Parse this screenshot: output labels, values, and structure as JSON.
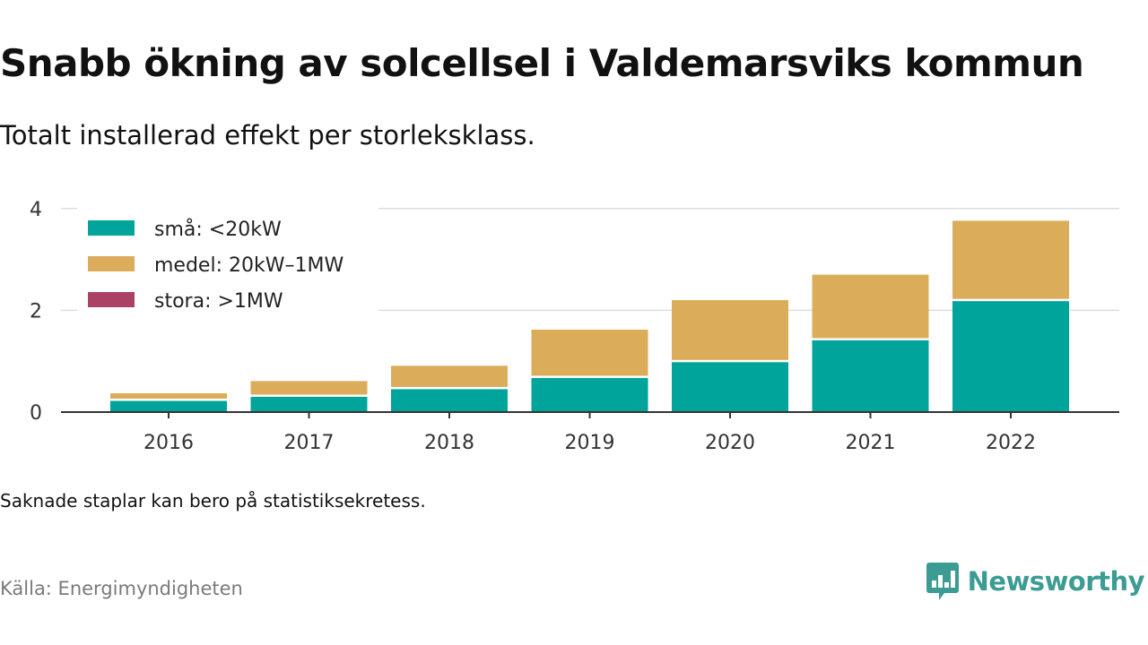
{
  "header": {
    "title": "Snabb ökning av solcellsel i Valdemarsviks kommun",
    "subtitle": "Totalt installerad effekt per storleksklass."
  },
  "footer": {
    "note": "Saknade staplar kan bero på statistiksekretess.",
    "source": "Källa: Energimyndigheten",
    "brand": "Newsworthy"
  },
  "colors": {
    "small": "#00a49a",
    "medium": "#dbad5a",
    "large": "#ab4266",
    "brand": "#3c9c94"
  },
  "chart_data": {
    "type": "bar",
    "stacked": true,
    "categories": [
      "2016",
      "2017",
      "2018",
      "2019",
      "2020",
      "2021",
      "2022"
    ],
    "series": [
      {
        "name": "små: <20kW",
        "color": "#00a49a",
        "values": [
          0.22,
          0.3,
          0.45,
          0.67,
          0.98,
          1.41,
          2.18
        ]
      },
      {
        "name": "medel: 20kW–1MW",
        "color": "#dbad5a",
        "values": [
          0.15,
          0.31,
          0.46,
          0.95,
          1.22,
          1.29,
          1.58
        ]
      },
      {
        "name": "stora: >1MW",
        "color": "#ab4266",
        "values": [
          0,
          0,
          0,
          0,
          0,
          0,
          0
        ]
      }
    ],
    "yticks": [
      0,
      2,
      4
    ],
    "ylim": [
      0,
      4.3
    ],
    "xlabel": "",
    "ylabel": "",
    "grid": true,
    "legend_position": "top-left"
  }
}
